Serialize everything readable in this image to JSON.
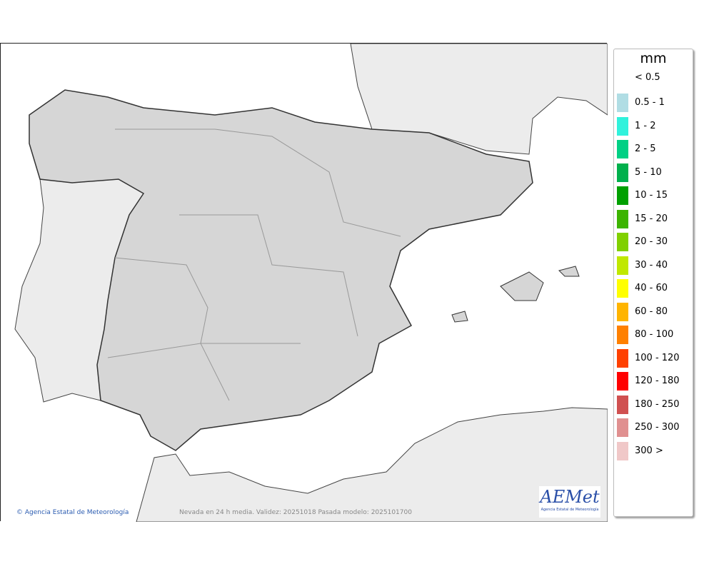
{
  "legend": {
    "unit": "mm",
    "items": [
      {
        "label": "< 0.5",
        "color": null
      },
      {
        "label": "0.5 - 1",
        "color": "#b0dde4"
      },
      {
        "label": "1 - 2",
        "color": "#30f2dc"
      },
      {
        "label": "2 - 5",
        "color": "#00d084"
      },
      {
        "label": "5 - 10",
        "color": "#00b04c"
      },
      {
        "label": "10 - 15",
        "color": "#00a000"
      },
      {
        "label": "15 - 20",
        "color": "#3cb400"
      },
      {
        "label": "20 - 30",
        "color": "#80d000"
      },
      {
        "label": "30 - 40",
        "color": "#c0e800"
      },
      {
        "label": "40 - 60",
        "color": "#ffff00"
      },
      {
        "label": "60 - 80",
        "color": "#ffb400"
      },
      {
        "label": "80 - 100",
        "color": "#ff8000"
      },
      {
        "label": "100 - 120",
        "color": "#ff4000"
      },
      {
        "label": "120 - 180",
        "color": "#ff0000"
      },
      {
        "label": "180 - 250",
        "color": "#d05050"
      },
      {
        "label": "250 - 300",
        "color": "#e09090"
      },
      {
        "label": "300 >",
        "color": "#f0c8c8"
      }
    ]
  },
  "credit": "© Agencia Estatal de Meteorología",
  "caption": "Nevada en 24 h media. Validez: 20251018 Pasada modelo: 2025101700",
  "logo": {
    "text": "AEMet",
    "subtitle": "Agencia Estatal de Meteorología"
  }
}
